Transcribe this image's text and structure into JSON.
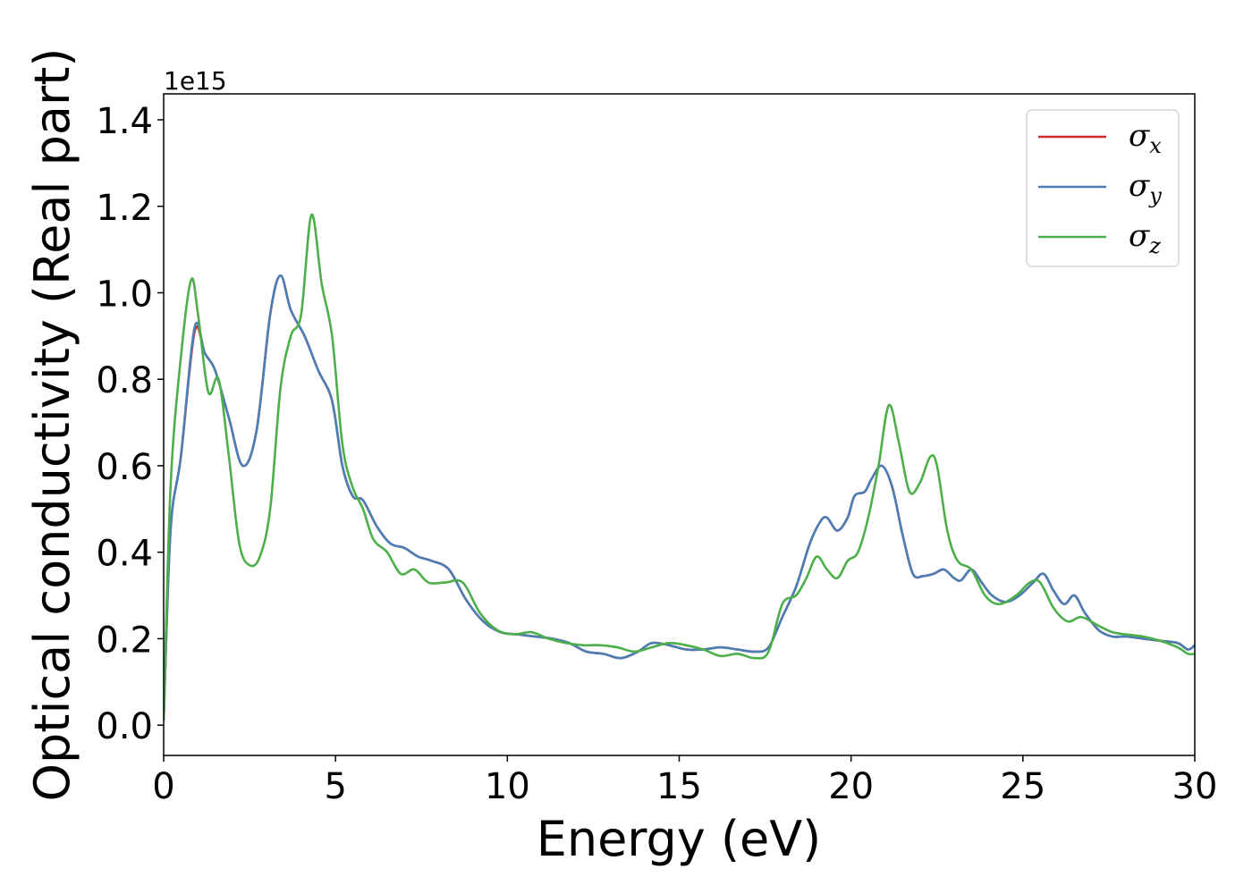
{
  "chart_data": {
    "type": "line",
    "xlabel": "Energy (eV)",
    "ylabel": "Optical conductivity (Real part)",
    "y_offset_label": "1e15",
    "xlim": [
      0,
      30
    ],
    "ylim": [
      -0.07,
      1.46
    ],
    "x_ticks": [
      0,
      5,
      10,
      15,
      20,
      25,
      30
    ],
    "x_tick_labels": [
      "0",
      "5",
      "10",
      "15",
      "20",
      "25",
      "30"
    ],
    "y_ticks": [
      0.0,
      0.2,
      0.4,
      0.6,
      0.8,
      1.0,
      1.2,
      1.4
    ],
    "y_tick_labels": [
      "0.0",
      "0.2",
      "0.4",
      "0.6",
      "0.8",
      "1.0",
      "1.2",
      "1.4"
    ],
    "grid": false,
    "legend_position": "top-right",
    "series": [
      {
        "name": "σx",
        "symbol": "σ",
        "subscript": "x",
        "color": "#d62728",
        "x": [
          0,
          0.2,
          0.5,
          0.9,
          1.2,
          1.5,
          1.9,
          2.3,
          2.7,
          3.1,
          3.4,
          3.7,
          4.1,
          4.5,
          4.9,
          5.2,
          5.5,
          5.8,
          6.2,
          6.6,
          7.0,
          7.4,
          7.8,
          8.3,
          8.8,
          9.3,
          9.8,
          10.3,
          10.8,
          11.3,
          11.8,
          12.3,
          12.8,
          13.3,
          13.8,
          14.2,
          14.7,
          15.2,
          15.7,
          16.2,
          16.7,
          17.2,
          17.6,
          18.0,
          18.4,
          18.8,
          19.1,
          19.3,
          19.6,
          19.9,
          20.1,
          20.4,
          20.6,
          20.9,
          21.2,
          21.5,
          21.8,
          22.1,
          22.4,
          22.7,
          23.0,
          23.2,
          23.5,
          23.8,
          24.1,
          24.5,
          24.9,
          25.3,
          25.6,
          25.9,
          26.2,
          26.5,
          26.8,
          27.2,
          27.6,
          28.0,
          28.5,
          29.0,
          29.5,
          29.8,
          30
        ],
        "y": [
          0.01,
          0.45,
          0.62,
          0.91,
          0.86,
          0.82,
          0.71,
          0.6,
          0.68,
          0.95,
          1.04,
          0.96,
          0.9,
          0.82,
          0.75,
          0.6,
          0.53,
          0.52,
          0.46,
          0.42,
          0.41,
          0.39,
          0.38,
          0.36,
          0.29,
          0.24,
          0.215,
          0.21,
          0.205,
          0.2,
          0.19,
          0.17,
          0.165,
          0.155,
          0.17,
          0.19,
          0.185,
          0.175,
          0.175,
          0.18,
          0.175,
          0.17,
          0.18,
          0.25,
          0.32,
          0.42,
          0.47,
          0.48,
          0.45,
          0.48,
          0.53,
          0.54,
          0.57,
          0.6,
          0.55,
          0.44,
          0.35,
          0.345,
          0.35,
          0.36,
          0.34,
          0.335,
          0.36,
          0.33,
          0.3,
          0.285,
          0.3,
          0.33,
          0.35,
          0.31,
          0.28,
          0.3,
          0.26,
          0.22,
          0.205,
          0.205,
          0.2,
          0.195,
          0.19,
          0.175,
          0.185
        ]
      },
      {
        "name": "σy",
        "symbol": "σ",
        "subscript": "y",
        "color": "#4a7fb5",
        "x": [
          0,
          0.2,
          0.5,
          0.9,
          1.2,
          1.5,
          1.9,
          2.3,
          2.7,
          3.1,
          3.4,
          3.7,
          4.1,
          4.5,
          4.9,
          5.2,
          5.5,
          5.8,
          6.2,
          6.6,
          7.0,
          7.4,
          7.8,
          8.3,
          8.8,
          9.3,
          9.8,
          10.3,
          10.8,
          11.3,
          11.8,
          12.3,
          12.8,
          13.3,
          13.8,
          14.2,
          14.7,
          15.2,
          15.7,
          16.2,
          16.7,
          17.2,
          17.6,
          18.0,
          18.4,
          18.8,
          19.1,
          19.3,
          19.6,
          19.9,
          20.1,
          20.4,
          20.6,
          20.9,
          21.2,
          21.5,
          21.8,
          22.1,
          22.4,
          22.7,
          23.0,
          23.2,
          23.5,
          23.8,
          24.1,
          24.5,
          24.9,
          25.3,
          25.6,
          25.9,
          26.2,
          26.5,
          26.8,
          27.2,
          27.6,
          28.0,
          28.5,
          29.0,
          29.5,
          29.8,
          30
        ],
        "y": [
          0.01,
          0.45,
          0.62,
          0.92,
          0.86,
          0.82,
          0.71,
          0.6,
          0.68,
          0.95,
          1.04,
          0.96,
          0.9,
          0.82,
          0.75,
          0.6,
          0.53,
          0.52,
          0.46,
          0.42,
          0.41,
          0.39,
          0.38,
          0.36,
          0.29,
          0.24,
          0.215,
          0.21,
          0.205,
          0.2,
          0.19,
          0.17,
          0.165,
          0.155,
          0.17,
          0.19,
          0.185,
          0.175,
          0.175,
          0.18,
          0.175,
          0.17,
          0.18,
          0.25,
          0.32,
          0.42,
          0.47,
          0.48,
          0.45,
          0.48,
          0.53,
          0.54,
          0.57,
          0.6,
          0.55,
          0.44,
          0.35,
          0.345,
          0.35,
          0.36,
          0.34,
          0.335,
          0.36,
          0.33,
          0.3,
          0.285,
          0.3,
          0.33,
          0.35,
          0.31,
          0.28,
          0.3,
          0.26,
          0.22,
          0.205,
          0.205,
          0.2,
          0.195,
          0.19,
          0.175,
          0.185
        ]
      },
      {
        "name": "σz",
        "symbol": "σ",
        "subscript": "z",
        "color": "#4daf4a",
        "x": [
          0,
          0.2,
          0.5,
          0.8,
          1.0,
          1.3,
          1.6,
          1.9,
          2.2,
          2.5,
          2.8,
          3.1,
          3.4,
          3.7,
          4.0,
          4.3,
          4.6,
          4.9,
          5.2,
          5.5,
          5.8,
          6.1,
          6.5,
          6.9,
          7.3,
          7.7,
          8.2,
          8.7,
          9.2,
          9.7,
          10.2,
          10.7,
          11.2,
          11.7,
          12.2,
          12.7,
          13.2,
          13.7,
          14.2,
          14.7,
          15.2,
          15.7,
          16.2,
          16.7,
          17.2,
          17.6,
          18.0,
          18.4,
          18.7,
          19.0,
          19.3,
          19.6,
          19.9,
          20.2,
          20.5,
          20.8,
          21.1,
          21.4,
          21.7,
          22.0,
          22.3,
          22.5,
          22.8,
          23.1,
          23.5,
          23.9,
          24.3,
          24.8,
          25.2,
          25.5,
          25.9,
          26.3,
          26.7,
          27.2,
          27.6,
          28.0,
          28.5,
          29.0,
          29.5,
          29.8,
          30
        ],
        "y": [
          0.01,
          0.55,
          0.85,
          1.03,
          0.95,
          0.77,
          0.8,
          0.62,
          0.42,
          0.37,
          0.39,
          0.5,
          0.78,
          0.9,
          0.95,
          1.18,
          1.02,
          0.9,
          0.65,
          0.55,
          0.5,
          0.43,
          0.4,
          0.35,
          0.36,
          0.33,
          0.33,
          0.33,
          0.26,
          0.22,
          0.21,
          0.215,
          0.2,
          0.19,
          0.185,
          0.185,
          0.18,
          0.17,
          0.18,
          0.19,
          0.185,
          0.175,
          0.16,
          0.165,
          0.155,
          0.17,
          0.28,
          0.3,
          0.34,
          0.39,
          0.36,
          0.34,
          0.38,
          0.4,
          0.48,
          0.6,
          0.74,
          0.65,
          0.54,
          0.56,
          0.62,
          0.6,
          0.45,
          0.38,
          0.36,
          0.3,
          0.28,
          0.3,
          0.33,
          0.33,
          0.27,
          0.24,
          0.25,
          0.23,
          0.215,
          0.21,
          0.205,
          0.195,
          0.18,
          0.165,
          0.165
        ]
      }
    ]
  }
}
